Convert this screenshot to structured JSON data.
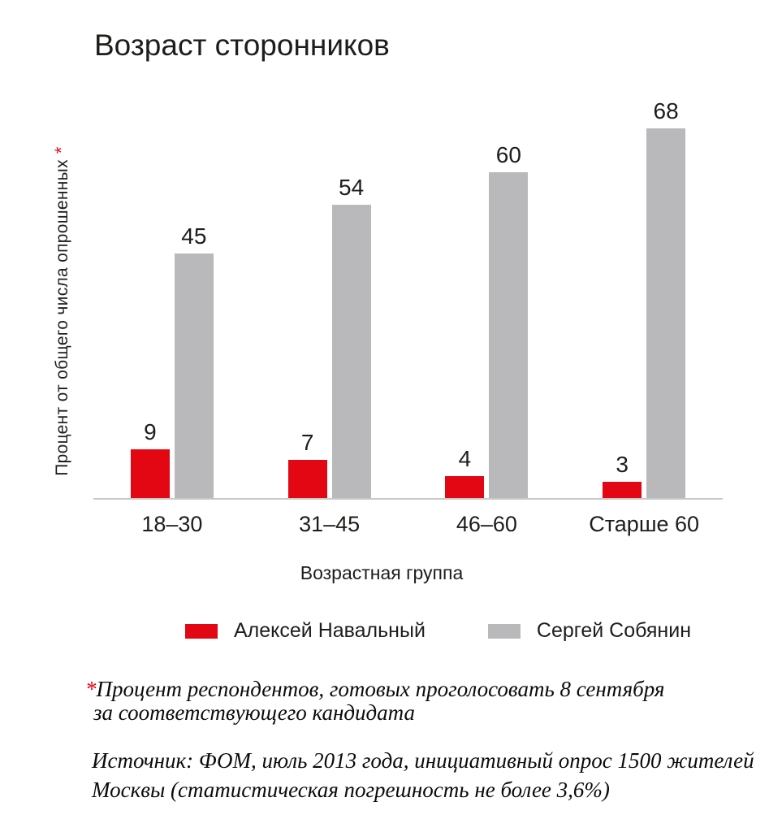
{
  "title": "Возраст сторонников",
  "chart_data": {
    "type": "bar",
    "title": "Возраст сторонников",
    "categories": [
      "18–30",
      "31–45",
      "46–60",
      "Старше 60"
    ],
    "series": [
      {
        "name": "Алексей Навальный",
        "color": "#e30613",
        "values": [
          9,
          7,
          4,
          3
        ]
      },
      {
        "name": "Сергей Собянин",
        "color": "#b9b9bb",
        "values": [
          45,
          54,
          60,
          68
        ]
      }
    ],
    "xlabel": "Возрастная группа",
    "ylabel": "Процент от общего числа опрошенных",
    "ylabel_asterisk": "*",
    "ylim": [
      0,
      68
    ],
    "grid": false,
    "value_labels": true,
    "legend_position": "bottom"
  },
  "footnote": {
    "asterisk": "*",
    "line1": "Процент респондентов, готовых проголосовать 8 сентября",
    "line2": "за соответствующего кандидата"
  },
  "source": {
    "line1": "Источник: ФОМ, июль 2013 года, инициативный опрос 1500 жителей",
    "line2": "Москвы (статистическая погрешность не более 3,6%)"
  },
  "colors": {
    "navalny_red": "#e30613",
    "sobyanin_gray": "#b9b9bb",
    "text": "#1d1d1b",
    "axis_line": "#c9c9c9",
    "asterisk_red": "#e30613"
  }
}
